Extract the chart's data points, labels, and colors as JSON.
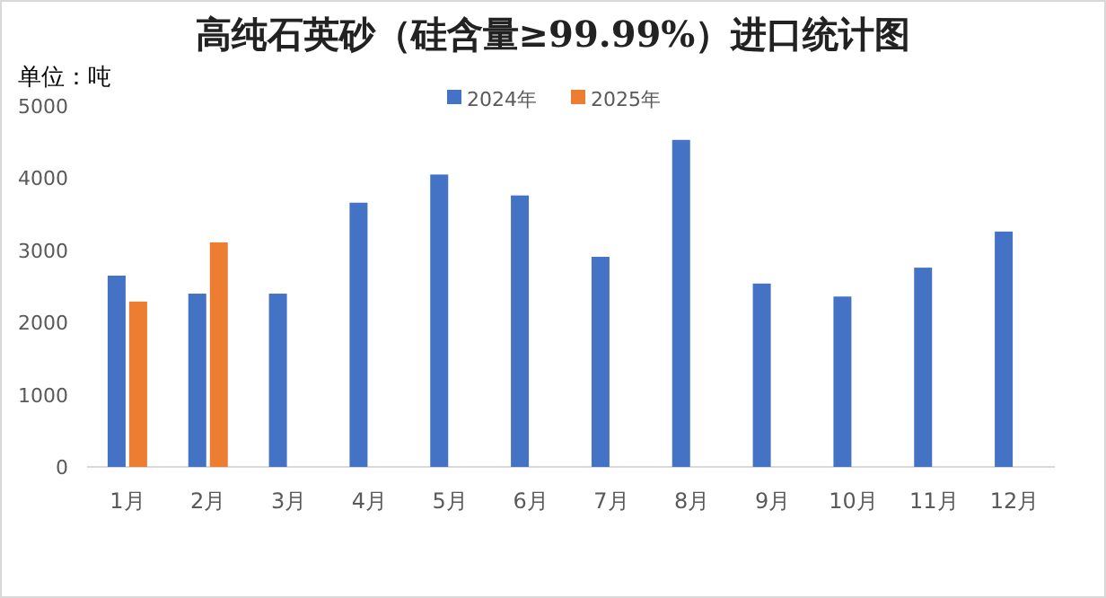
{
  "chart_data": {
    "type": "bar",
    "title": "高纯石英砂（硅含量≥99.99%）进口统计图",
    "ylabel": "单位：吨",
    "categories": [
      "1月",
      "2月",
      "3月",
      "4月",
      "5月",
      "6月",
      "7月",
      "8月",
      "9月",
      "10月",
      "11月",
      "12月"
    ],
    "series": [
      {
        "name": "2024年",
        "color": "#4472c4",
        "values": [
          2650,
          2400,
          2400,
          3660,
          4050,
          3760,
          2910,
          4530,
          2540,
          2360,
          2760,
          3260
        ]
      },
      {
        "name": "2025年",
        "color": "#ed7d31",
        "values": [
          2290,
          3110,
          null,
          null,
          null,
          null,
          null,
          null,
          null,
          null,
          null,
          null
        ]
      }
    ],
    "ylim": [
      0,
      5000
    ],
    "yticks": [
      0,
      1000,
      2000,
      3000,
      4000,
      5000
    ],
    "legend": "top",
    "grid": false
  }
}
